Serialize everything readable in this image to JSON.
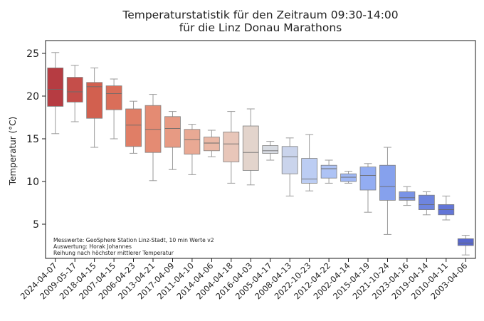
{
  "chart_data": {
    "type": "box",
    "title_lines": [
      "Temperaturstatistik für den Zeitraum 09:30-14:00",
      "für die Linz Donau Marathons"
    ],
    "xlabel": "",
    "ylabel": "Temperatur (°C)",
    "ylim": [
      1,
      26.5
    ],
    "yticks": [
      5,
      10,
      15,
      20,
      25
    ],
    "grid": false,
    "annotation_lines": [
      "Messwerte: GeoSphere Station Linz-Stadt, 10 min Werte v2",
      "Auswertung: Horak Johannes",
      "Reihung nach höchster mittlerer Temperatur"
    ],
    "categories": [
      "2024-04-07",
      "2009-05-17",
      "2018-04-15",
      "2007-04-15",
      "2006-04-23",
      "2013-04-21",
      "2017-04-09",
      "2011-04-10",
      "2014-04-06",
      "2004-04-18",
      "2016-04-03",
      "2005-04-17",
      "2008-04-13",
      "2022-10-23",
      "2012-04-22",
      "2002-04-14",
      "2015-04-19",
      "2021-10-24",
      "2023-04-16",
      "2019-04-14",
      "2010-04-11",
      "2003-04-06"
    ],
    "boxes": [
      {
        "min": 15.6,
        "q1": 18.8,
        "median": 20.8,
        "q3": 23.3,
        "max": 25.1,
        "color": "#b63c42"
      },
      {
        "min": 17.0,
        "q1": 19.3,
        "median": 20.5,
        "q3": 22.2,
        "max": 23.6,
        "color": "#c54e4a"
      },
      {
        "min": 14.0,
        "q1": 17.4,
        "median": 21.1,
        "q3": 21.6,
        "max": 23.3,
        "color": "#d2604f"
      },
      {
        "min": 15.0,
        "q1": 18.4,
        "median": 20.3,
        "q3": 21.2,
        "max": 22.0,
        "color": "#da6e59"
      },
      {
        "min": 13.3,
        "q1": 14.1,
        "median": 16.6,
        "q3": 18.5,
        "max": 19.4,
        "color": "#e07e66"
      },
      {
        "min": 10.1,
        "q1": 13.4,
        "median": 16.1,
        "q3": 18.9,
        "max": 20.2,
        "color": "#e48b73"
      },
      {
        "min": 11.4,
        "q1": 14.0,
        "median": 16.2,
        "q3": 17.6,
        "max": 18.2,
        "color": "#e79a83"
      },
      {
        "min": 10.8,
        "q1": 13.2,
        "median": 14.9,
        "q3": 16.1,
        "max": 16.7,
        "color": "#e9a994"
      },
      {
        "min": 12.9,
        "q1": 13.6,
        "median": 14.5,
        "q3": 15.2,
        "max": 16.0,
        "color": "#eab8a6"
      },
      {
        "min": 9.8,
        "q1": 12.3,
        "median": 14.4,
        "q3": 15.8,
        "max": 18.2,
        "color": "#e8c6b9"
      },
      {
        "min": 9.6,
        "q1": 11.3,
        "median": 13.4,
        "q3": 16.5,
        "max": 18.5,
        "color": "#e3d4cc"
      },
      {
        "min": 12.5,
        "q1": 13.3,
        "median": 13.6,
        "q3": 14.2,
        "max": 14.7,
        "color": "#d7dbe2"
      },
      {
        "min": 8.3,
        "q1": 10.9,
        "median": 12.9,
        "q3": 14.1,
        "max": 15.1,
        "color": "#cad4ec"
      },
      {
        "min": 8.9,
        "q1": 9.8,
        "median": 10.3,
        "q3": 12.7,
        "max": 15.5,
        "color": "#bccdf3"
      },
      {
        "min": 9.8,
        "q1": 10.4,
        "median": 11.5,
        "q3": 11.9,
        "max": 12.5,
        "color": "#aec3f5"
      },
      {
        "min": 9.8,
        "q1": 10.0,
        "median": 10.5,
        "q3": 10.9,
        "max": 11.2,
        "color": "#a0b8f5"
      },
      {
        "min": 6.4,
        "q1": 9.0,
        "median": 10.7,
        "q3": 11.7,
        "max": 12.1,
        "color": "#93adf2"
      },
      {
        "min": 3.8,
        "q1": 7.8,
        "median": 9.4,
        "q3": 11.9,
        "max": 14.0,
        "color": "#86a1ed"
      },
      {
        "min": 7.2,
        "q1": 7.8,
        "median": 8.1,
        "q3": 8.8,
        "max": 9.4,
        "color": "#7993e6"
      },
      {
        "min": 6.1,
        "q1": 6.7,
        "median": 7.3,
        "q3": 8.4,
        "max": 8.8,
        "color": "#6e85df"
      },
      {
        "min": 5.5,
        "q1": 6.1,
        "median": 6.7,
        "q3": 7.3,
        "max": 8.3,
        "color": "#6376d7"
      },
      {
        "min": 1.4,
        "q1": 2.5,
        "median": 2.8,
        "q3": 3.3,
        "max": 3.7,
        "color": "#5867cc"
      }
    ]
  }
}
